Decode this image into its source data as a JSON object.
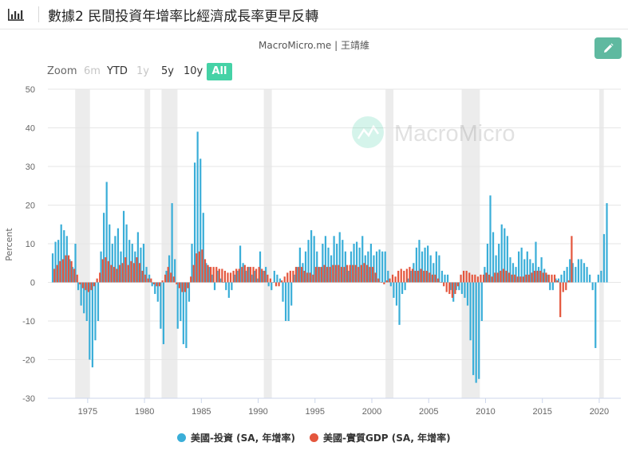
{
  "header": {
    "title": "數據2 民間投資年增率比經濟成長率更早反轉"
  },
  "chart_header": {
    "source": "MacroMicro.me | 王靖維"
  },
  "watermark": {
    "text": "MacroMicro"
  },
  "zoom": {
    "label": "Zoom",
    "buttons": [
      {
        "label": "6m",
        "state": "disabled"
      },
      {
        "label": "YTD",
        "state": "enabled"
      },
      {
        "label": "1y",
        "state": "disabled"
      },
      {
        "label": "5y",
        "state": "enabled"
      },
      {
        "label": "10y",
        "state": "enabled"
      },
      {
        "label": "All",
        "state": "active"
      }
    ]
  },
  "colors": {
    "investment": "#3aaed8",
    "gdp": "#e4563d",
    "recession": "#ececec",
    "accent": "#45d2a6"
  },
  "chart_data": {
    "type": "bar",
    "ylabel": "Percent",
    "ylim": [
      -30,
      50
    ],
    "yticks": [
      -30,
      -20,
      -10,
      0,
      10,
      20,
      30,
      40,
      50
    ],
    "xlim": [
      1971.5,
      2021.9
    ],
    "xticks": [
      1975,
      1980,
      1985,
      1990,
      1995,
      2000,
      2005,
      2010,
      2015,
      2020
    ],
    "grid": "horizontal",
    "legend": "bottom-center",
    "frequency": "quarterly",
    "recessions": [
      [
        1973.9,
        1975.2
      ],
      [
        1980.0,
        1980.5
      ],
      [
        1981.5,
        1982.9
      ],
      [
        1990.5,
        1991.2
      ],
      [
        2001.2,
        2001.9
      ],
      [
        2007.9,
        2009.5
      ],
      [
        2020.0,
        2020.4
      ]
    ],
    "series": [
      {
        "name": "美國-投資 (SA, 年增率)",
        "start": 1972.0,
        "values": [
          7.5,
          10.5,
          11.0,
          15.0,
          13.5,
          12.0,
          6.0,
          4.0,
          10.0,
          -2.0,
          -6.0,
          -8.0,
          -10.0,
          -20.0,
          -22.0,
          -15.0,
          -10.0,
          8.0,
          18.0,
          26.0,
          15.0,
          10.0,
          12.0,
          14.0,
          8.0,
          18.5,
          15.0,
          11.0,
          10.0,
          8.0,
          13.0,
          9.0,
          10.0,
          4.0,
          2.0,
          -1.0,
          -3.0,
          -5.0,
          -12.0,
          -16.0,
          3.0,
          7.0,
          20.5,
          6.0,
          -12.0,
          -10.0,
          -16.0,
          -17.0,
          -5.0,
          10.0,
          31.0,
          39.0,
          32.0,
          18.0,
          5.0,
          4.0,
          2.0,
          -2.0,
          3.0,
          1.0,
          0.0,
          -2.0,
          -4.0,
          -2.0,
          2.0,
          3.0,
          9.5,
          5.0,
          3.0,
          4.0,
          2.0,
          3.0,
          1.0,
          8.0,
          3.0,
          4.0,
          -1.0,
          -2.0,
          3.0,
          2.0,
          1.0,
          -5.0,
          -10.0,
          -10.0,
          -6.0,
          2.0,
          4.0,
          9.0,
          5.0,
          8.0,
          11.0,
          13.5,
          12.0,
          8.0,
          4.0,
          10.0,
          12.0,
          9.0,
          7.0,
          12.0,
          10.0,
          13.0,
          11.0,
          8.0,
          3.0,
          8.0,
          10.0,
          10.5,
          9.0,
          12.0,
          7.0,
          8.0,
          10.0,
          7.0,
          8.0,
          8.5,
          8.0,
          8.0,
          3.0,
          -1.0,
          -4.0,
          -6.0,
          -11.0,
          -3.0,
          -2.0,
          1.0,
          3.0,
          5.0,
          9.0,
          11.0,
          8.0,
          9.0,
          9.5,
          7.0,
          5.0,
          8.0,
          7.0,
          3.0,
          2.0,
          2.0,
          -2.0,
          -5.0,
          -2.0,
          -2.0,
          -3.0,
          -4.0,
          -6.0,
          -15.0,
          -24.0,
          -26.0,
          -25.0,
          -10.0,
          4.0,
          10.0,
          22.5,
          13.0,
          7.0,
          10.0,
          15.0,
          14.0,
          12.0,
          6.5,
          5.0,
          4.0,
          8.0,
          9.0,
          6.0,
          8.0,
          6.0,
          5.0,
          10.5,
          4.0,
          6.5,
          3.5,
          2.0,
          -2.0,
          -2.0,
          1.0,
          1.0,
          2.0,
          3.0,
          4.0,
          6.0,
          5.0,
          4.0,
          6.0,
          6.0,
          5.0,
          4.0,
          2.0,
          -2.0,
          -17.0,
          2.0,
          3.0,
          12.5,
          20.5
        ],
        "color": "#3aaed8"
      },
      {
        "name": "美國-實質GDP (SA, 年增率)",
        "start": 1972.0,
        "values": [
          3.5,
          4.5,
          5.5,
          6.0,
          7.0,
          7.0,
          5.5,
          3.5,
          2.0,
          -0.5,
          -1.5,
          -2.0,
          -2.5,
          -2.0,
          -1.0,
          1.0,
          2.5,
          6.0,
          6.5,
          5.5,
          4.5,
          4.0,
          3.5,
          4.5,
          5.0,
          6.5,
          4.5,
          5.5,
          5.0,
          6.5,
          5.0,
          3.0,
          2.0,
          1.0,
          1.0,
          -0.5,
          -1.0,
          -1.0,
          0.5,
          2.0,
          4.0,
          2.5,
          1.5,
          -0.5,
          -1.5,
          -2.5,
          -2.5,
          -1.5,
          1.5,
          4.5,
          7.5,
          8.0,
          8.5,
          6.0,
          4.5,
          4.0,
          4.0,
          4.0,
          3.5,
          3.5,
          3.0,
          2.5,
          2.5,
          3.0,
          3.5,
          3.5,
          4.0,
          4.5,
          4.0,
          4.0,
          4.0,
          3.5,
          4.0,
          3.5,
          3.0,
          2.0,
          1.0,
          0.0,
          -1.0,
          -1.0,
          0.5,
          1.5,
          2.5,
          3.0,
          3.0,
          4.0,
          4.0,
          4.0,
          3.0,
          2.5,
          2.5,
          2.0,
          4.0,
          4.0,
          4.0,
          4.5,
          4.0,
          4.0,
          4.5,
          4.5,
          4.5,
          4.0,
          4.0,
          4.5,
          4.5,
          4.5,
          4.5,
          4.0,
          4.5,
          5.0,
          4.5,
          4.0,
          4.0,
          2.5,
          1.0,
          0.0,
          -0.5,
          0.5,
          1.0,
          2.0,
          1.5,
          3.0,
          3.5,
          3.0,
          3.5,
          4.0,
          3.5,
          3.0,
          3.0,
          3.5,
          3.0,
          3.0,
          2.5,
          2.0,
          2.0,
          1.0,
          0.0,
          -1.0,
          -2.5,
          -3.0,
          -4.0,
          -3.0,
          -1.0,
          2.0,
          3.0,
          3.0,
          2.5,
          2.0,
          2.0,
          1.5,
          2.0,
          2.0,
          2.5,
          2.0,
          1.5,
          2.5,
          2.5,
          3.0,
          3.5,
          3.0,
          2.5,
          2.0,
          2.0,
          1.5,
          1.5,
          1.5,
          2.0,
          2.0,
          2.5,
          3.0,
          3.0,
          3.0,
          2.5,
          2.5,
          2.0,
          2.0,
          2.0,
          0.5,
          -9.0,
          -2.5,
          -2.0,
          0.5,
          12.0
        ],
        "color": "#e4563d"
      }
    ]
  },
  "legend": [
    {
      "label": "美國-投資 (SA, 年增率)",
      "color": "#3aaed8"
    },
    {
      "label": "美國-實質GDP (SA, 年增率)",
      "color": "#e4563d"
    }
  ]
}
